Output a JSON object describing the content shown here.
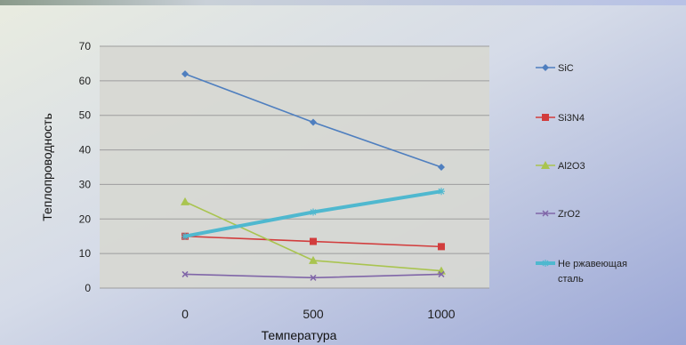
{
  "chart_data": {
    "type": "line",
    "title": "",
    "xlabel": "Температура",
    "ylabel": "Теплопроводность",
    "categories": [
      "0",
      "500",
      "1000"
    ],
    "ylim": [
      0,
      70
    ],
    "yticks": [
      0,
      10,
      20,
      30,
      40,
      50,
      60,
      70
    ],
    "grid": true,
    "legend_position": "right",
    "series": [
      {
        "name": "SiC",
        "values": [
          62,
          48,
          35
        ],
        "color": "#4f7fbf",
        "marker": "diamond"
      },
      {
        "name": "Si3N4",
        "values": [
          15,
          13.5,
          12
        ],
        "color": "#d23d3d",
        "marker": "square"
      },
      {
        "name": "Al2O3",
        "values": [
          25,
          8,
          5
        ],
        "color": "#a9c450",
        "marker": "triangle"
      },
      {
        "name": "ZrO2",
        "values": [
          4,
          3,
          4
        ],
        "color": "#8066a8",
        "marker": "x"
      },
      {
        "name": "Не ржавеющая сталь",
        "values": [
          15,
          22,
          28
        ],
        "color": "#4fb8cf",
        "marker": "star"
      }
    ]
  }
}
